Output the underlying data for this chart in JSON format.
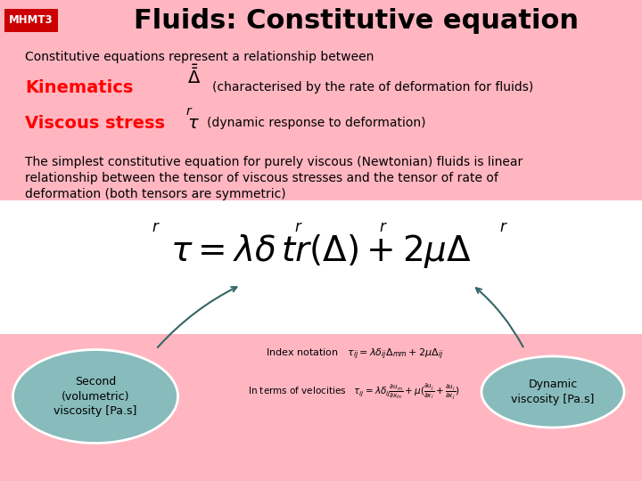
{
  "bg_color": "#FFB6C1",
  "white_color": "#FFFFFF",
  "red_box_color": "#CC0000",
  "bubble_color": "#88BBBB",
  "title_text": "Fluids: Constitutive equation",
  "mhmt_text": "MHMT3",
  "subtitle": "Constitutive equations represent a relationship between",
  "kinematics_label": "Kinematics",
  "kinematics_desc": "(characterised by the rate of deformation for fluids)",
  "stress_label": "Viscous stress",
  "stress_desc": "(dynamic response to deformation)",
  "para_lines": [
    "The simplest constitutive equation for purely viscous (Newtonian) fluids is linear",
    "relationship between the tensor of viscous stresses and the tensor of rate of",
    "deformation (both tensors are symmetric)"
  ],
  "bubble_left_text": "Second\n(volumetric)\nviscosity [Pa.s]",
  "bubble_right_text": "Dynamic\nviscosity [Pa.s]"
}
